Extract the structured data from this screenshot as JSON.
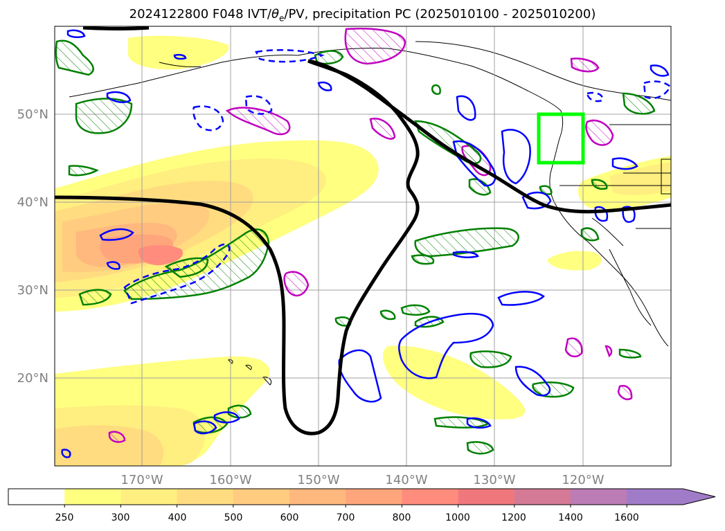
{
  "title": {
    "prefix": "2024122800 F048 IVT/",
    "theta": "θ",
    "theta_sub": "e",
    "suffix": "/PV, precipitation PC (2025010100 - 2025010200)"
  },
  "map": {
    "lon_labels": [
      "170°W",
      "160°W",
      "150°W",
      "140°W",
      "130°W",
      "120°W"
    ],
    "lat_labels": [
      "50°N",
      "40°N",
      "30°N",
      "20°N"
    ],
    "grid": true,
    "label_color": "#808080"
  },
  "colorbar": {
    "ticks": [
      "250",
      "300",
      "400",
      "500",
      "600",
      "700",
      "800",
      "1000",
      "1200",
      "1400",
      "1600"
    ],
    "colors": [
      "#ffffff",
      "#ffff80",
      "#ffee80",
      "#ffdc80",
      "#ffcc80",
      "#ffb87e",
      "#ffa57c",
      "#ff8c7c",
      "#f0787c",
      "#d47a96",
      "#bc7cb6",
      "#a07cc8"
    ],
    "extend": "max"
  },
  "overlay_colors": {
    "ivt_contour": "#000000",
    "pc_positive": "#008000",
    "pc_negative": "#0000ff",
    "pv": "#c000c0",
    "highlight_box": "#00ff00"
  }
}
